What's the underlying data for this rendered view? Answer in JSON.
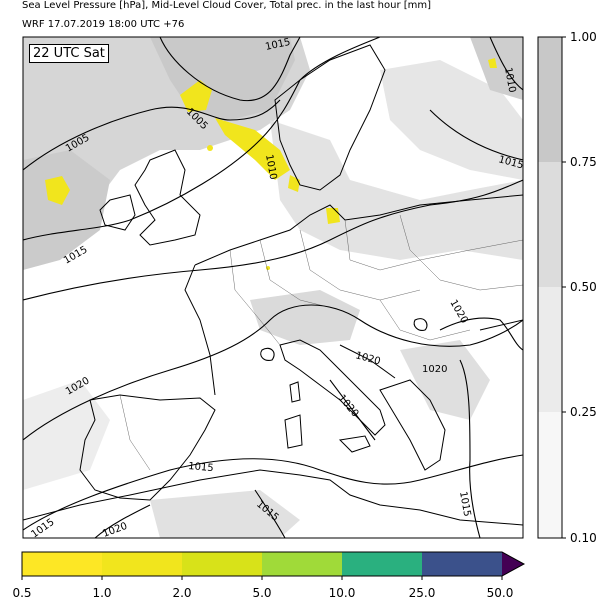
{
  "title_line1": "Sea Level Pressure [hPa], Mid-Level Cloud Cover, Total prec. in the last hour [mm]",
  "title_line2": "WRF 17.07.2019 18:00 UTC +76",
  "time_label": "22 UTC Sat",
  "cloud_colorbar": {
    "ticks": [
      "1.00",
      "0.75",
      "0.50",
      "0.25",
      "0.10"
    ],
    "colors": [
      "#c8c8c8",
      "#dddddd",
      "#ececec",
      "#f7f7f7"
    ]
  },
  "precip_colorbar": {
    "ticks": [
      "0.5",
      "1.0",
      "2.0",
      "5.0",
      "10.0",
      "25.0",
      "50.0"
    ],
    "colors": [
      "#fde725",
      "#f1e51d",
      "#d8e219",
      "#a0da39",
      "#2ab07f",
      "#3b518b",
      "#440154"
    ]
  },
  "isobar_labels": [
    "1015",
    "1010",
    "1005",
    "1015",
    "1010",
    "1005",
    "1015",
    "1015",
    "1020",
    "1020",
    "1020",
    "1020",
    "1020",
    "1015",
    "1015",
    "1015",
    "1020",
    "1015"
  ],
  "colors": {
    "isobar": "#000000",
    "precip_light": "#f5e61e",
    "cloud": "#cfcfcf"
  }
}
